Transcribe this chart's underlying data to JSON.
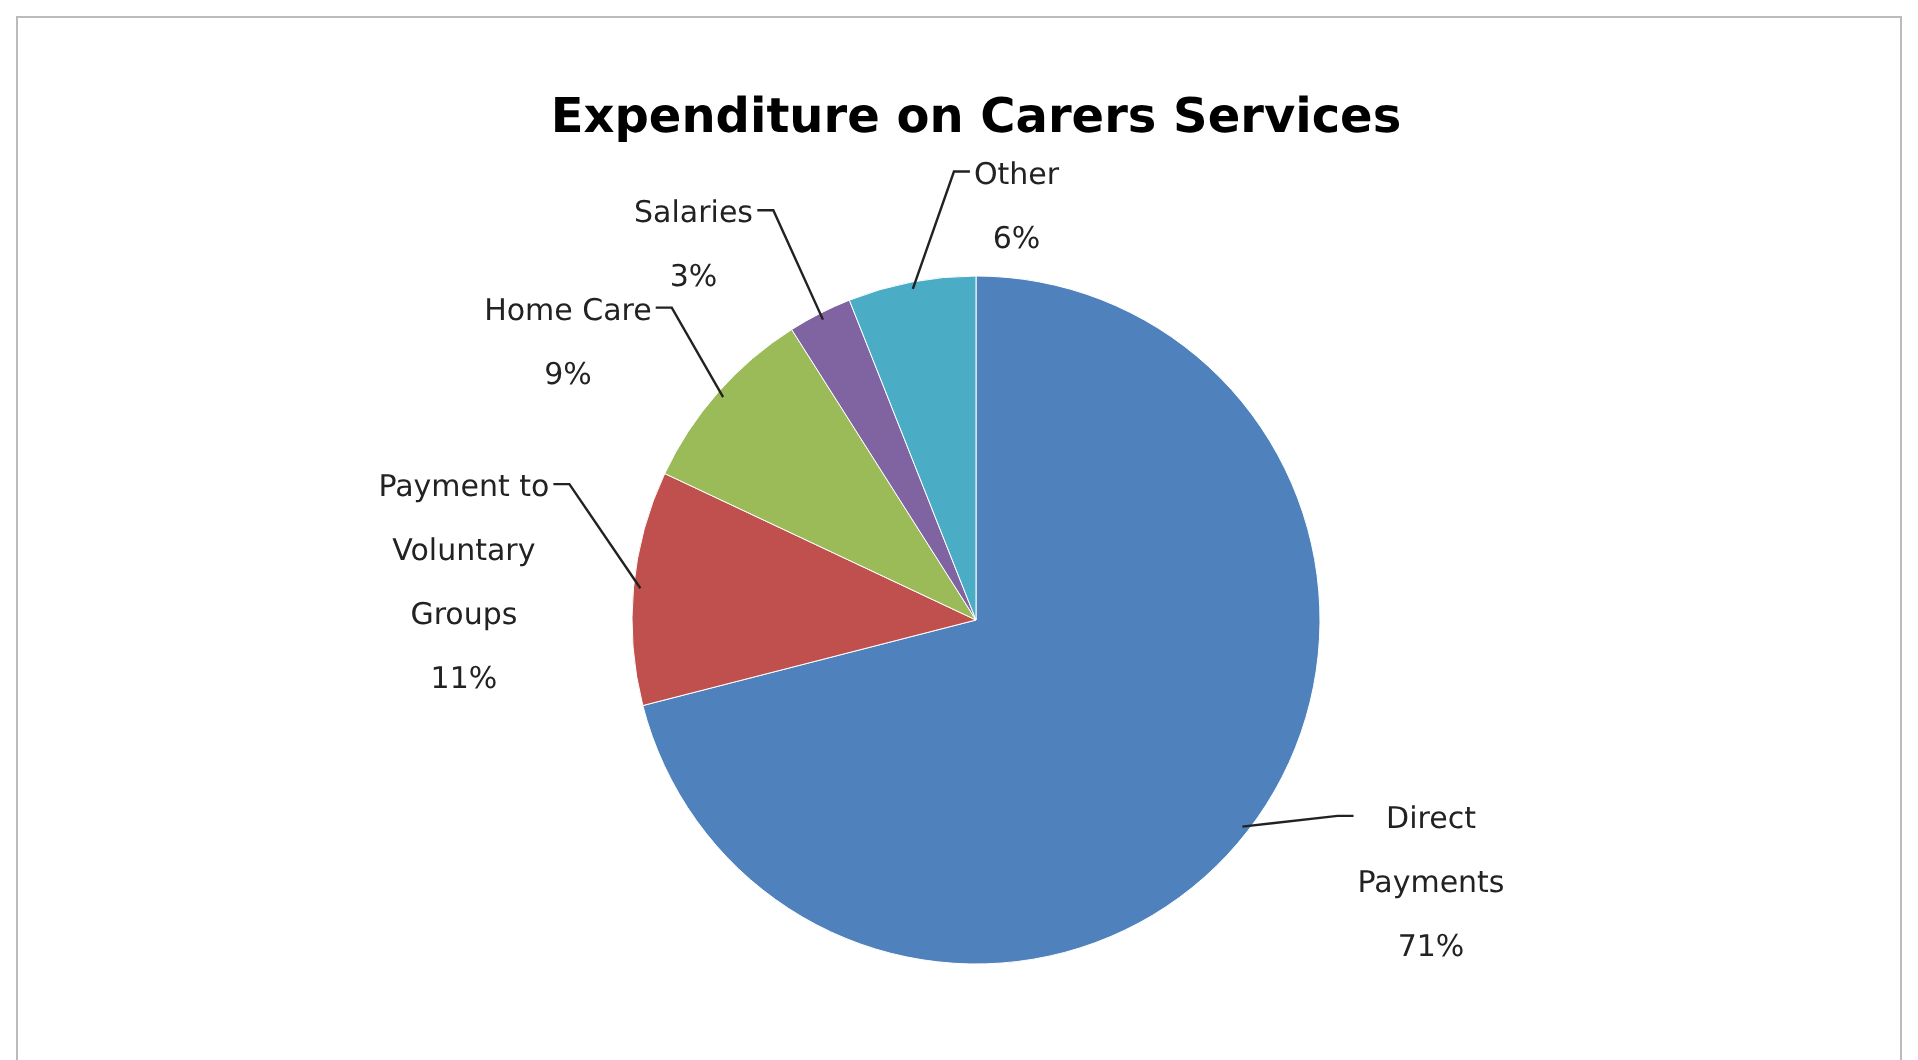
{
  "chart_data": {
    "type": "pie",
    "title": "Expenditure on Carers Services",
    "categories": [
      "Direct Payments",
      "Payment to Voluntary Groups",
      "Home Care",
      "Salaries",
      "Other"
    ],
    "values": [
      71,
      11,
      9,
      3,
      6
    ],
    "value_labels": [
      "71%",
      "11%",
      "9%",
      "3%",
      "6%"
    ],
    "colors": [
      "#4f81bd",
      "#c0504d",
      "#9bbb59",
      "#8064a2",
      "#4bacc6"
    ]
  }
}
